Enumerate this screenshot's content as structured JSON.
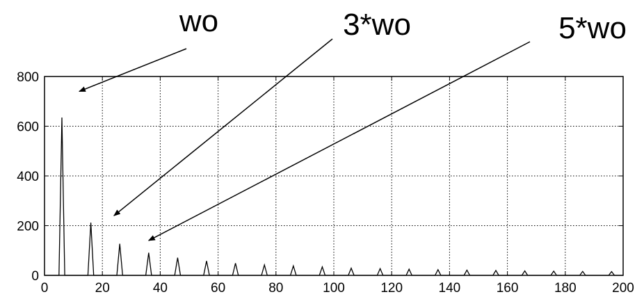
{
  "chart_data": {
    "type": "line",
    "title": "",
    "xlabel": "",
    "ylabel": "",
    "xlim": [
      0,
      200
    ],
    "ylim": [
      0,
      800
    ],
    "xticks": [
      0,
      20,
      40,
      60,
      80,
      100,
      120,
      140,
      160,
      180,
      200
    ],
    "yticks": [
      0,
      200,
      400,
      600,
      800
    ],
    "grid": true,
    "series": [
      {
        "x": [
          6,
          16,
          26,
          36,
          46,
          56,
          66,
          76,
          86,
          96,
          106,
          116,
          126,
          136,
          146,
          156,
          166,
          176,
          186,
          196
        ],
        "values": [
          635,
          212,
          127,
          91,
          71,
          58,
          49,
          42,
          38,
          34,
          29,
          27,
          25,
          23,
          21,
          20,
          18,
          17,
          16,
          15
        ]
      }
    ],
    "annotations": [
      {
        "text": "wo",
        "target": [
          12,
          740
        ]
      },
      {
        "text": "3*wo",
        "target": [
          24,
          240
        ]
      },
      {
        "text": "5*wo",
        "target": [
          36,
          140
        ]
      }
    ]
  }
}
